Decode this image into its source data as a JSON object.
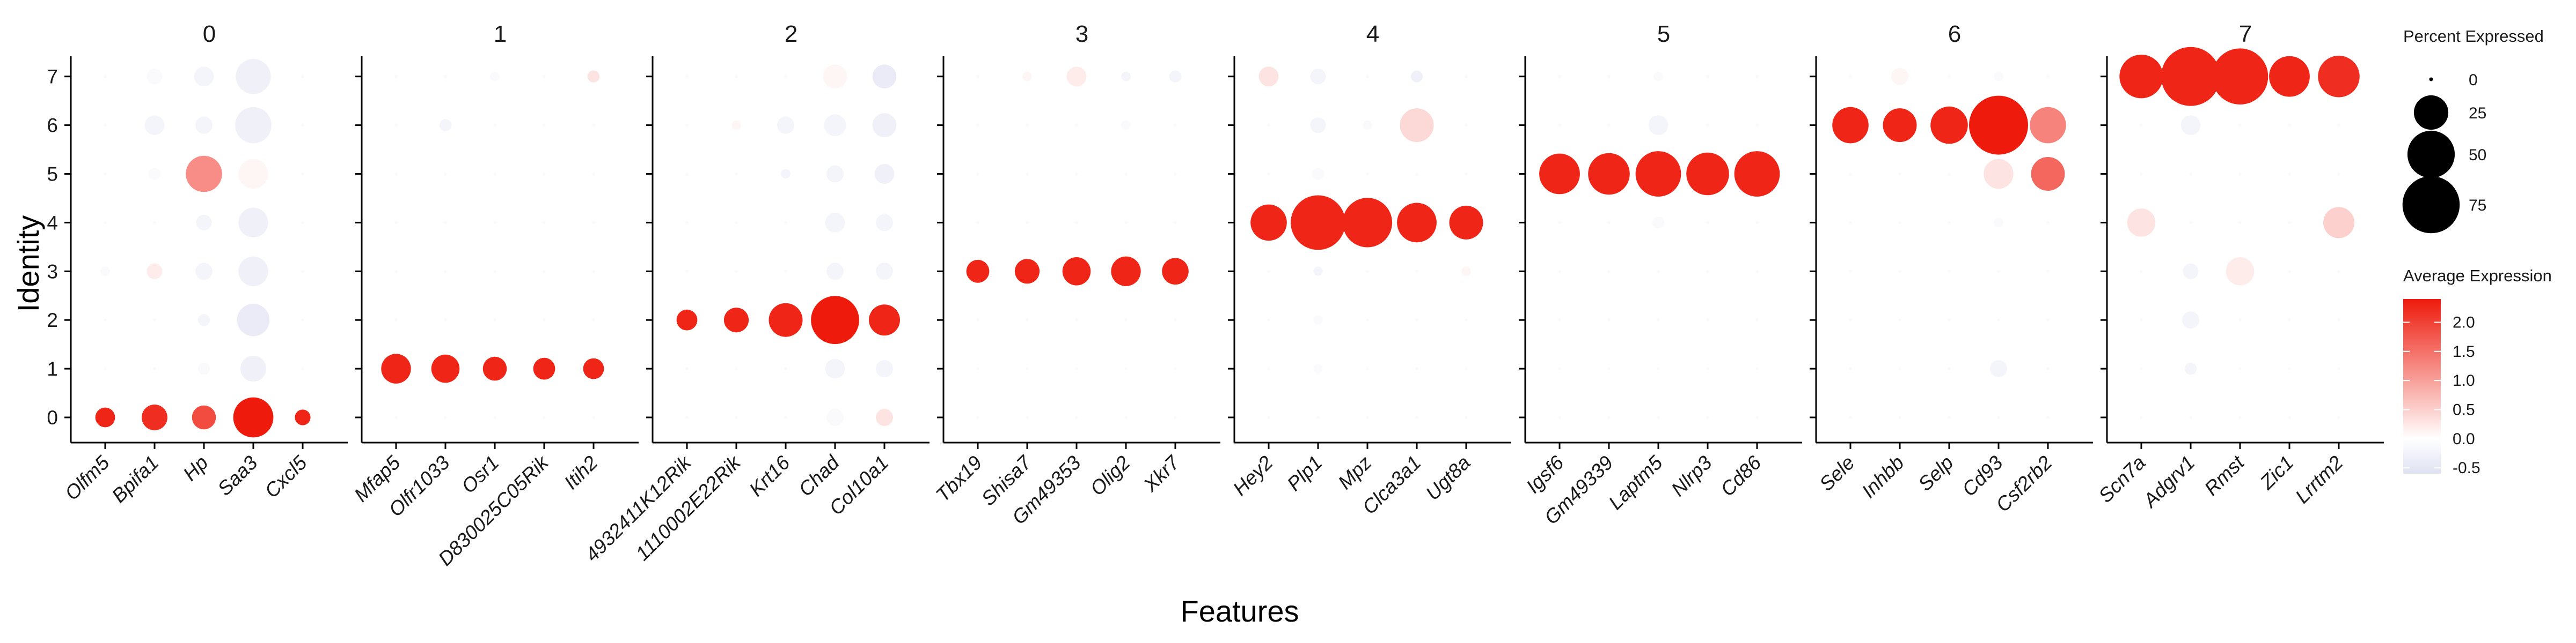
{
  "chart_data": {
    "type": "dotplot",
    "xlabel": "Features",
    "ylabel": "Identity",
    "identities": [
      "0",
      "1",
      "2",
      "3",
      "4",
      "5",
      "6",
      "7"
    ],
    "size_legend": {
      "title": "Percent Expressed",
      "breaks": [
        0,
        25,
        50,
        75
      ],
      "labels": [
        "0",
        "25",
        "50",
        "75"
      ]
    },
    "color_legend": {
      "title": "Average Expression",
      "range": [
        -0.6,
        2.4
      ],
      "ticks": [
        -0.5,
        0.0,
        0.5,
        1.0,
        1.5,
        2.0
      ],
      "labels": [
        "-0.5",
        "0.0",
        "0.5",
        "1.0",
        "1.5",
        "2.0"
      ],
      "low_color": "#dfe1f1",
      "mid_color": "#ffffff",
      "high_color": "#ee1b0d"
    },
    "panels": [
      {
        "title": "0",
        "genes": [
          "Olfm5",
          "Bpifa1",
          "Hp",
          "Saa3",
          "Cxcl5"
        ],
        "avg_exp": [
          [
            2.3,
            2.2,
            1.9,
            2.4,
            2.3
          ],
          [
            -0.1,
            -0.1,
            -0.1,
            -0.3,
            -0.1
          ],
          [
            -0.1,
            -0.1,
            -0.2,
            -0.4,
            -0.1
          ],
          [
            -0.1,
            0.2,
            -0.2,
            -0.3,
            -0.1
          ],
          [
            -0.1,
            -0.1,
            -0.2,
            -0.3,
            -0.1
          ],
          [
            -0.1,
            -0.1,
            1.2,
            0.1,
            -0.1
          ],
          [
            -0.1,
            -0.2,
            -0.2,
            -0.3,
            -0.1
          ],
          [
            -0.1,
            -0.1,
            -0.2,
            -0.3,
            -0.1
          ]
        ],
        "pct_exp": [
          [
            7,
            13,
            11,
            35,
            4
          ],
          [
            0,
            0,
            2,
            13,
            0
          ],
          [
            0,
            0,
            2,
            22,
            0
          ],
          [
            1,
            4,
            5,
            18,
            0
          ],
          [
            0,
            0,
            4,
            18,
            0
          ],
          [
            0,
            2,
            28,
            18,
            0
          ],
          [
            0,
            7,
            5,
            28,
            0
          ],
          [
            0,
            4,
            7,
            26,
            0
          ]
        ]
      },
      {
        "title": "1",
        "genes": [
          "Mfap5",
          "Olfr1033",
          "Osr1",
          "D830025C05Rik",
          "Itih2"
        ],
        "avg_exp": [
          [
            -0.1,
            -0.1,
            -0.1,
            -0.1,
            -0.1
          ],
          [
            2.3,
            2.3,
            2.3,
            2.3,
            2.3
          ],
          [
            -0.1,
            -0.1,
            -0.1,
            -0.1,
            -0.1
          ],
          [
            -0.1,
            -0.1,
            -0.1,
            -0.1,
            -0.1
          ],
          [
            -0.1,
            -0.1,
            -0.1,
            -0.1,
            -0.1
          ],
          [
            -0.1,
            -0.1,
            -0.1,
            -0.1,
            -0.1
          ],
          [
            -0.1,
            -0.2,
            -0.1,
            -0.1,
            -0.1
          ],
          [
            -0.1,
            -0.1,
            -0.1,
            -0.1,
            0.3
          ]
        ],
        "pct_exp": [
          [
            0,
            0,
            0,
            0,
            0
          ],
          [
            18,
            16,
            11,
            9,
            8
          ],
          [
            0,
            0,
            0,
            0,
            0
          ],
          [
            0,
            0,
            0,
            0,
            0
          ],
          [
            0,
            0,
            0,
            0,
            0
          ],
          [
            0,
            0,
            0,
            0,
            0
          ],
          [
            0,
            2,
            0,
            0,
            0
          ],
          [
            0,
            0,
            1,
            0,
            2
          ]
        ]
      },
      {
        "title": "2",
        "genes": [
          "4932411K12Rik",
          "1110002E22Rik",
          "Krt16",
          "Chad",
          "Col10a1"
        ],
        "avg_exp": [
          [
            -0.1,
            -0.1,
            -0.1,
            -0.1,
            0.3
          ],
          [
            -0.1,
            -0.1,
            -0.1,
            -0.2,
            -0.2
          ],
          [
            2.3,
            2.3,
            2.3,
            2.4,
            2.3
          ],
          [
            -0.1,
            -0.1,
            -0.1,
            -0.2,
            -0.2
          ],
          [
            -0.1,
            -0.1,
            -0.1,
            -0.2,
            -0.2
          ],
          [
            -0.1,
            -0.1,
            -0.2,
            -0.2,
            -0.3
          ],
          [
            -0.1,
            0.1,
            -0.2,
            -0.2,
            -0.3
          ],
          [
            -0.1,
            -0.1,
            -0.1,
            0.1,
            -0.4
          ]
        ],
        "pct_exp": [
          [
            0,
            0,
            0,
            5,
            5
          ],
          [
            0,
            0,
            0,
            7,
            5
          ],
          [
            8,
            12,
            24,
            52,
            20
          ],
          [
            0,
            0,
            0,
            5,
            5
          ],
          [
            0,
            0,
            0,
            7,
            5
          ],
          [
            0,
            0,
            1,
            5,
            7
          ],
          [
            0,
            1,
            5,
            9,
            11
          ],
          [
            0,
            0,
            0,
            11,
            11
          ]
        ]
      },
      {
        "title": "3",
        "genes": [
          "Tbx19",
          "Shisa7",
          "Gm49353",
          "Olig2",
          "Xkr7"
        ],
        "avg_exp": [
          [
            -0.1,
            -0.1,
            -0.1,
            -0.1,
            -0.1
          ],
          [
            -0.1,
            -0.1,
            -0.1,
            -0.1,
            -0.1
          ],
          [
            -0.1,
            -0.1,
            -0.1,
            -0.1,
            -0.1
          ],
          [
            2.3,
            2.3,
            2.3,
            2.3,
            2.3
          ],
          [
            -0.1,
            -0.1,
            -0.1,
            -0.1,
            -0.1
          ],
          [
            -0.1,
            -0.1,
            -0.1,
            -0.1,
            -0.1
          ],
          [
            -0.1,
            -0.1,
            -0.1,
            -0.1,
            -0.1
          ],
          [
            -0.1,
            0.1,
            0.2,
            -0.2,
            -0.2
          ]
        ],
        "pct_exp": [
          [
            0,
            0,
            0,
            0,
            0
          ],
          [
            0,
            0,
            0,
            0,
            0
          ],
          [
            0,
            0,
            0,
            0,
            0
          ],
          [
            10,
            12,
            16,
            18,
            14
          ],
          [
            0,
            0,
            0,
            0,
            0
          ],
          [
            0,
            0,
            0,
            0,
            0
          ],
          [
            0,
            0,
            0,
            1,
            0
          ],
          [
            0,
            1,
            7,
            1,
            2
          ]
        ]
      },
      {
        "title": "4",
        "genes": [
          "Hey2",
          "Plp1",
          "Mpz",
          "Clca3a1",
          "Ugt8a"
        ],
        "avg_exp": [
          [
            -0.1,
            -0.1,
            -0.1,
            -0.1,
            -0.1
          ],
          [
            -0.1,
            -0.1,
            -0.1,
            -0.1,
            -0.1
          ],
          [
            -0.1,
            -0.1,
            -0.1,
            -0.1,
            -0.1
          ],
          [
            -0.1,
            -0.2,
            -0.1,
            -0.1,
            0.1
          ],
          [
            2.3,
            2.3,
            2.3,
            2.3,
            2.3
          ],
          [
            -0.1,
            -0.1,
            -0.1,
            -0.1,
            -0.1
          ],
          [
            -0.1,
            -0.2,
            -0.1,
            0.4,
            -0.1
          ],
          [
            0.3,
            -0.2,
            -0.1,
            -0.3,
            -0.1
          ]
        ],
        "pct_exp": [
          [
            0,
            0,
            0,
            0,
            0
          ],
          [
            0,
            1,
            0,
            0,
            0
          ],
          [
            0,
            1,
            0,
            0,
            0
          ],
          [
            0,
            1,
            0,
            0,
            1
          ],
          [
            28,
            68,
            55,
            34,
            24
          ],
          [
            0,
            2,
            0,
            0,
            0
          ],
          [
            0,
            4,
            1,
            24,
            0
          ],
          [
            7,
            4,
            0,
            2,
            0
          ]
        ]
      },
      {
        "title": "5",
        "genes": [
          "Igsf6",
          "Gm49339",
          "Laptm5",
          "Nlrp3",
          "Cd86"
        ],
        "avg_exp": [
          [
            -0.1,
            -0.1,
            -0.1,
            -0.1,
            -0.1
          ],
          [
            -0.1,
            -0.1,
            -0.1,
            -0.1,
            -0.1
          ],
          [
            -0.1,
            -0.1,
            -0.1,
            -0.1,
            -0.1
          ],
          [
            -0.1,
            -0.1,
            -0.1,
            -0.1,
            -0.1
          ],
          [
            -0.1,
            -0.1,
            -0.1,
            -0.1,
            -0.1
          ],
          [
            2.3,
            2.3,
            2.3,
            2.3,
            2.3
          ],
          [
            -0.1,
            -0.1,
            -0.2,
            -0.1,
            -0.1
          ],
          [
            -0.1,
            -0.1,
            -0.1,
            -0.1,
            -0.1
          ]
        ],
        "pct_exp": [
          [
            0,
            0,
            0,
            0,
            0
          ],
          [
            0,
            0,
            0,
            0,
            0
          ],
          [
            0,
            0,
            0,
            0,
            0
          ],
          [
            0,
            0,
            0,
            0,
            0
          ],
          [
            0,
            0,
            2,
            0,
            0
          ],
          [
            36,
            38,
            46,
            40,
            46
          ],
          [
            0,
            0,
            7,
            0,
            0
          ],
          [
            0,
            0,
            1,
            0,
            0
          ]
        ]
      },
      {
        "title": "6",
        "genes": [
          "Sele",
          "Inhbb",
          "Selp",
          "Cd93",
          "Csf2rb2"
        ],
        "avg_exp": [
          [
            -0.1,
            -0.1,
            -0.1,
            -0.1,
            -0.1
          ],
          [
            -0.1,
            -0.1,
            -0.1,
            -0.2,
            -0.1
          ],
          [
            -0.1,
            -0.1,
            -0.1,
            -0.1,
            -0.1
          ],
          [
            -0.1,
            -0.1,
            -0.1,
            -0.1,
            -0.1
          ],
          [
            -0.1,
            -0.1,
            -0.1,
            -0.1,
            -0.1
          ],
          [
            -0.1,
            -0.1,
            -0.1,
            0.3,
            1.6
          ],
          [
            2.3,
            2.3,
            2.3,
            2.4,
            1.3
          ],
          [
            -0.1,
            0.1,
            -0.1,
            -0.1,
            -0.1
          ]
        ],
        "pct_exp": [
          [
            0,
            0,
            0,
            0,
            0
          ],
          [
            0,
            0,
            0,
            5,
            0
          ],
          [
            0,
            0,
            0,
            0,
            0
          ],
          [
            0,
            0,
            0,
            0,
            0
          ],
          [
            0,
            0,
            0,
            1,
            0
          ],
          [
            0,
            0,
            0,
            18,
            24
          ],
          [
            28,
            24,
            30,
            80,
            28
          ],
          [
            0,
            5,
            0,
            1,
            0
          ]
        ]
      },
      {
        "title": "7",
        "genes": [
          "Scn7a",
          "Adgrv1",
          "Rmst",
          "Zic1",
          "Lrrtm2"
        ],
        "avg_exp": [
          [
            -0.1,
            -0.1,
            -0.1,
            -0.1,
            -0.1
          ],
          [
            -0.1,
            -0.2,
            -0.1,
            -0.1,
            -0.1
          ],
          [
            -0.1,
            -0.2,
            -0.1,
            -0.1,
            -0.1
          ],
          [
            -0.1,
            -0.2,
            0.2,
            -0.1,
            -0.1
          ],
          [
            0.3,
            -0.1,
            -0.1,
            -0.1,
            0.5
          ],
          [
            -0.1,
            -0.1,
            -0.1,
            -0.1,
            -0.1
          ],
          [
            -0.1,
            -0.2,
            -0.1,
            -0.1,
            -0.1
          ],
          [
            2.3,
            2.3,
            2.3,
            2.3,
            2.2
          ]
        ],
        "pct_exp": [
          [
            0,
            0,
            0,
            0,
            0
          ],
          [
            0,
            2,
            0,
            0,
            0
          ],
          [
            0,
            5,
            0,
            0,
            0
          ],
          [
            0,
            4,
            16,
            0,
            0
          ],
          [
            16,
            0,
            0,
            0,
            20
          ],
          [
            0,
            0,
            0,
            0,
            0
          ],
          [
            0,
            7,
            0,
            0,
            0
          ],
          [
            42,
            80,
            72,
            36,
            38
          ]
        ]
      }
    ]
  }
}
